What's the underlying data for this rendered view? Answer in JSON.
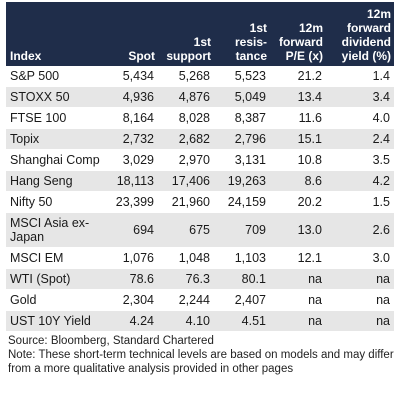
{
  "table": {
    "headers": [
      "Index",
      "Spot",
      "1st support",
      "1st resis-tance",
      "12m forward P/E (x)",
      "12m forward dividend yield (%)"
    ],
    "rows": [
      [
        "S&P 500",
        "5,434",
        "5,268",
        "5,523",
        "21.2",
        "1.4"
      ],
      [
        "STOXX 50",
        "4,936",
        "4,876",
        "5,049",
        "13.4",
        "3.4"
      ],
      [
        "FTSE 100",
        "8,164",
        "8,028",
        "8,387",
        "11.6",
        "4.0"
      ],
      [
        "Topix",
        "2,732",
        "2,682",
        "2,796",
        "15.1",
        "2.4"
      ],
      [
        "Shanghai Comp",
        "3,029",
        "2,970",
        "3,131",
        "10.8",
        "3.5"
      ],
      [
        "Hang Seng",
        "18,113",
        "17,406",
        "19,263",
        "8.6",
        "4.2"
      ],
      [
        "Nifty 50",
        "23,399",
        "21,960",
        "24,159",
        "20.2",
        "1.5"
      ],
      [
        "MSCI Asia ex-Japan",
        "694",
        "675",
        "709",
        "13.0",
        "2.6"
      ],
      [
        "MSCI EM",
        "1,076",
        "1,048",
        "1,103",
        "12.1",
        "3.0"
      ],
      [
        "WTI (Spot)",
        "78.6",
        "76.3",
        "80.1",
        "na",
        "na"
      ],
      [
        "Gold",
        "2,304",
        "2,244",
        "2,407",
        "na",
        "na"
      ],
      [
        "UST 10Y Yield",
        "4.24",
        "4.10",
        "4.51",
        "na",
        "na"
      ]
    ]
  },
  "footer": {
    "source": "Source: Bloomberg, Standard Chartered",
    "note": "Note: These short-term technical levels are based on models and may differ from a more qualitative analysis provided in other pages"
  },
  "colors": {
    "header_bg": "#1f2d4a",
    "row_stripe": "#e6e6e6"
  }
}
